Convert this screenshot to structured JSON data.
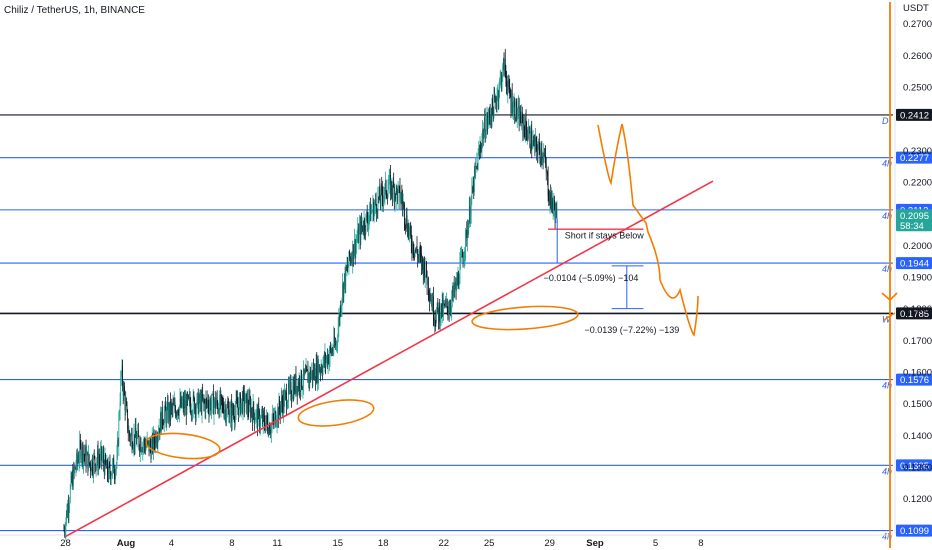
{
  "header": {
    "title": "Chiliz / TetherUS, 1h, BINANCE"
  },
  "colors": {
    "bull": "#26a69a",
    "bear": "#131722",
    "level": "#2962ff",
    "trendline": "#f23645",
    "marker": "#f57c00",
    "measure": "#2962ff"
  },
  "chart_data": {
    "type": "candlestick",
    "title": "Chiliz / TetherUS, 1h, BINANCE",
    "ylabel": "USDT",
    "ylim": [
      0.1085,
      0.2775
    ],
    "y_ticks": [
      "0.2700",
      "0.2600",
      "0.2500",
      "0.2300",
      "0.2200",
      "0.2000",
      "0.1900",
      "0.1800",
      "0.1700",
      "0.1600",
      "0.1500",
      "0.1400",
      "0.1300",
      "0.1200"
    ],
    "x_ticks": [
      {
        "label": "28",
        "day": -4
      },
      {
        "label": "Aug",
        "day": 0
      },
      {
        "label": "4",
        "day": 3
      },
      {
        "label": "8",
        "day": 7
      },
      {
        "label": "11",
        "day": 10
      },
      {
        "label": "15",
        "day": 14
      },
      {
        "label": "18",
        "day": 17
      },
      {
        "label": "22",
        "day": 21
      },
      {
        "label": "25",
        "day": 24
      },
      {
        "label": "29",
        "day": 28
      },
      {
        "label": "Sep",
        "day": 31
      },
      {
        "label": "5",
        "day": 35
      },
      {
        "label": "8",
        "day": 38
      }
    ],
    "current_price": "0.2095",
    "countdown": "58:34",
    "levels": [
      {
        "value": 0.2412,
        "label": "0.2412",
        "tf": "D",
        "style": "black"
      },
      {
        "value": 0.2277,
        "label": "0.2277",
        "tf": "4h",
        "style": "blue"
      },
      {
        "value": 0.2112,
        "label": "0.2112",
        "tf": "4h",
        "style": "blue"
      },
      {
        "value": 0.1944,
        "label": "0.1944",
        "tf": "4h",
        "style": "blue"
      },
      {
        "value": 0.1785,
        "label": "0.1785",
        "tf": "W",
        "style": "black"
      },
      {
        "value": 0.1576,
        "label": "0.1576",
        "tf": "4h",
        "style": "blue"
      },
      {
        "value": 0.1305,
        "label": "0.1305",
        "tf": "4h",
        "style": "blue"
      },
      {
        "value": 0.1099,
        "label": "0.1099",
        "tf": "4h",
        "style": "blue"
      }
    ],
    "path": [
      [
        -4.1,
        0.11
      ],
      [
        -3.6,
        0.125
      ],
      [
        -3.0,
        0.136
      ],
      [
        -2.4,
        0.131
      ],
      [
        -1.6,
        0.133
      ],
      [
        -1.2,
        0.128
      ],
      [
        -0.6,
        0.131
      ],
      [
        -0.4,
        0.152
      ],
      [
        -0.3,
        0.16
      ],
      [
        0.2,
        0.14
      ],
      [
        0.9,
        0.138
      ],
      [
        1.7,
        0.136
      ],
      [
        2.4,
        0.146
      ],
      [
        3.4,
        0.149
      ],
      [
        4.6,
        0.15
      ],
      [
        6.0,
        0.15
      ],
      [
        7.0,
        0.147
      ],
      [
        7.8,
        0.151
      ],
      [
        8.8,
        0.145
      ],
      [
        9.6,
        0.143
      ],
      [
        10.3,
        0.15
      ],
      [
        11.2,
        0.156
      ],
      [
        12.5,
        0.16
      ],
      [
        13.1,
        0.163
      ],
      [
        13.9,
        0.169
      ],
      [
        14.3,
        0.186
      ],
      [
        14.8,
        0.196
      ],
      [
        15.6,
        0.206
      ],
      [
        16.8,
        0.215
      ],
      [
        17.4,
        0.219
      ],
      [
        18.2,
        0.215
      ],
      [
        18.8,
        0.202
      ],
      [
        19.8,
        0.192
      ],
      [
        20.4,
        0.178
      ],
      [
        21.4,
        0.181
      ],
      [
        21.9,
        0.188
      ],
      [
        22.5,
        0.203
      ],
      [
        23.0,
        0.22
      ],
      [
        23.6,
        0.236
      ],
      [
        24.4,
        0.245
      ],
      [
        25.0,
        0.257
      ],
      [
        25.3,
        0.248
      ],
      [
        25.8,
        0.242
      ],
      [
        26.5,
        0.236
      ],
      [
        27.0,
        0.231
      ],
      [
        27.6,
        0.229
      ],
      [
        28.0,
        0.215
      ],
      [
        28.5,
        0.2095
      ]
    ],
    "trendline": [
      [
        -4.0,
        0.108
      ],
      [
        38.8,
        0.2203
      ]
    ],
    "annotations": [
      {
        "text": "Short if stays Below",
        "x": 29.0,
        "y": 0.2021,
        "color": "trendline"
      },
      {
        "text": "−0.0104 (−5.09%) −104",
        "x": 27.6,
        "y": 0.1888,
        "color": "bear"
      },
      {
        "text": "−0.0139 (−7.22%) −139",
        "x": 30.3,
        "y": 0.1723,
        "color": "bear"
      }
    ]
  }
}
